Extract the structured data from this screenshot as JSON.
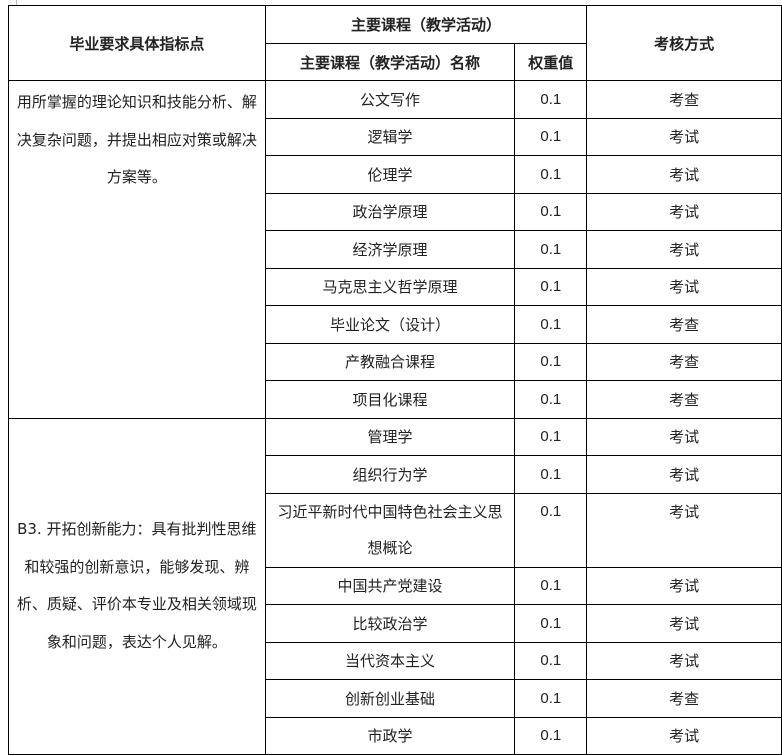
{
  "header": {
    "indicator": "毕业要求具体指标点",
    "course_group": "主要课程（教学活动）",
    "course_name": "主要课程（教学活动）名称",
    "weight": "权重值",
    "assessment": "考核方式"
  },
  "groups": [
    {
      "indicator": "用所掌握的理论知识和技能分析、解决复杂问题，并提出相应对策或解决方案等。",
      "rows": [
        {
          "course": "公文写作",
          "weight": "0.1",
          "assessment": "考查"
        },
        {
          "course": "逻辑学",
          "weight": "0.1",
          "assessment": "考试"
        },
        {
          "course": "伦理学",
          "weight": "0.1",
          "assessment": "考试"
        },
        {
          "course": "政治学原理",
          "weight": "0.1",
          "assessment": "考试"
        },
        {
          "course": "经济学原理",
          "weight": "0.1",
          "assessment": "考试"
        },
        {
          "course": "马克思主义哲学原理",
          "weight": "0.1",
          "assessment": "考试"
        },
        {
          "course": "毕业论文（设计）",
          "weight": "0.1",
          "assessment": "考查"
        },
        {
          "course": "产教融合课程",
          "weight": "0.1",
          "assessment": "考查"
        },
        {
          "course": "项目化课程",
          "weight": "0.1",
          "assessment": "考查"
        }
      ]
    },
    {
      "indicator": "B3. 开拓创新能力：具有批判性思维和较强的创新意识，能够发现、辨析、质疑、评价本专业及相关领域现象和问题，表达个人见解。",
      "rows": [
        {
          "course": "管理学",
          "weight": "0.1",
          "assessment": "考试"
        },
        {
          "course": "组织行为学",
          "weight": "0.1",
          "assessment": "考试"
        },
        {
          "course": "习近平新时代中国特色社会主义思想概论",
          "weight": "0.1",
          "assessment": "考试"
        },
        {
          "course": "中国共产党建设",
          "weight": "0.1",
          "assessment": "考试"
        },
        {
          "course": "比较政治学",
          "weight": "0.1",
          "assessment": "考试"
        },
        {
          "course": "当代资本主义",
          "weight": "0.1",
          "assessment": "考试"
        },
        {
          "course": "创新创业基础",
          "weight": "0.1",
          "assessment": "考查"
        },
        {
          "course": "市政学",
          "weight": "0.1",
          "assessment": "考试"
        }
      ]
    }
  ]
}
